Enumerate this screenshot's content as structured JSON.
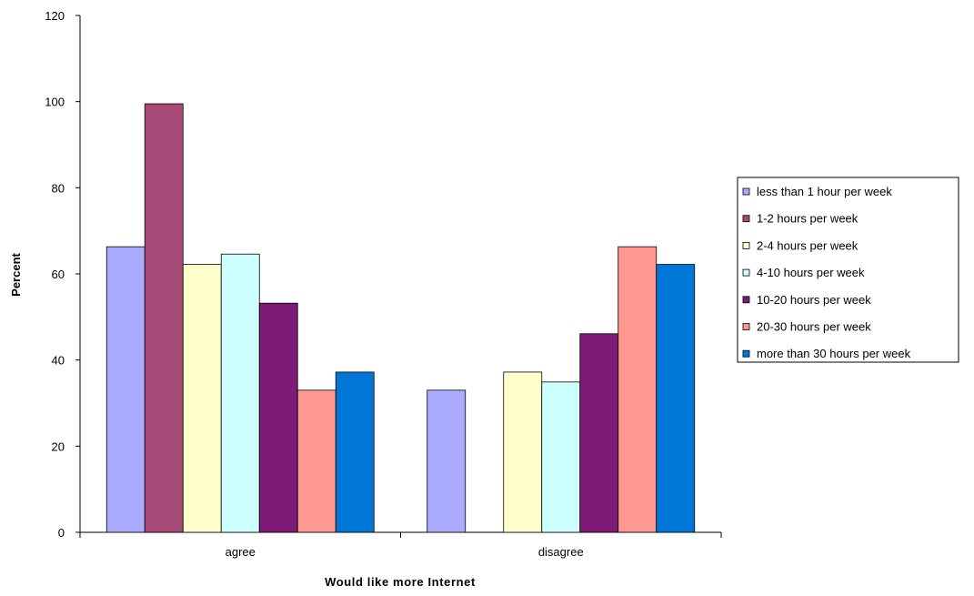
{
  "chart_data": {
    "type": "bar",
    "title": "",
    "xlabel": "Would like more Internet",
    "ylabel": "Percent",
    "categories": [
      "agree",
      "disagree"
    ],
    "ylim": [
      0,
      120
    ],
    "yticks": [
      0,
      20,
      40,
      60,
      80,
      100,
      120
    ],
    "grid": false,
    "legend_position": "right",
    "series": [
      {
        "name": "less than 1 hour per week",
        "color": "#aaaaff",
        "values": [
          66.3,
          33.0
        ]
      },
      {
        "name": "1-2 hours per week",
        "color": "#a84a78",
        "values": [
          99.5,
          0
        ]
      },
      {
        "name": "2-4 hours per week",
        "color": "#ffffcc",
        "values": [
          62.2,
          37.2
        ]
      },
      {
        "name": "4-10 hours per week",
        "color": "#ccffff",
        "values": [
          64.6,
          34.9
        ]
      },
      {
        "name": "10-20 hours per week",
        "color": "#7e1a78",
        "values": [
          53.2,
          46.1
        ]
      },
      {
        "name": "20-30 hours per week",
        "color": "#ff9891",
        "values": [
          33.0,
          66.3
        ]
      },
      {
        "name": "more than 30 hours per week",
        "color": "#0077d6",
        "values": [
          37.2,
          62.2
        ]
      }
    ]
  }
}
